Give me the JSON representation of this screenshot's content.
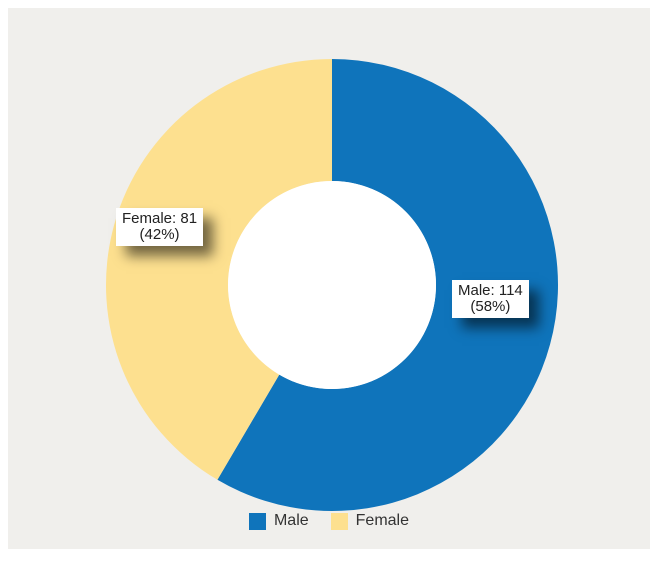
{
  "chart_data": {
    "type": "pie",
    "donut": true,
    "categories": [
      "Male",
      "Female"
    ],
    "values": [
      114,
      81
    ],
    "percentages": [
      "58%",
      "42%"
    ],
    "colors": [
      "#0f74bb",
      "#fde08f"
    ],
    "labels": [
      {
        "line1": "Male: 114",
        "line2": "(58%)"
      },
      {
        "line1": "Female: 81",
        "line2": "(42%)"
      }
    ],
    "legend": {
      "position": "bottom",
      "entries": [
        "Male",
        "Female"
      ]
    }
  }
}
